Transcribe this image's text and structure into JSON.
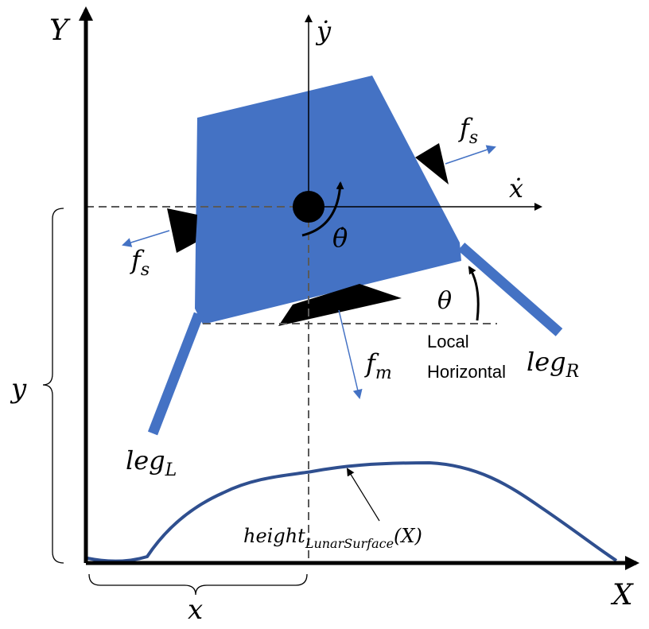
{
  "colors": {
    "lander_body": "#4472C4",
    "terrain": "#2F4F8F",
    "axes": "#000000",
    "dashed": "#595959",
    "force_arrow": "#4472C4"
  },
  "axes": {
    "world_x_label": "X",
    "world_y_label": "Y",
    "body_x_label": "ẋ",
    "body_y_label": "ẏ"
  },
  "labels": {
    "theta_dot": "θ̇",
    "theta": "θ",
    "fs": "f",
    "fs_sub": "s",
    "fm": "f",
    "fm_sub": "m",
    "local_line1": "Local",
    "local_line2": "Horizontal",
    "leg": "leg",
    "leg_right_sub": "R",
    "leg_left_sub": "L",
    "height": "height",
    "height_sub": "LunarSurface",
    "height_arg": "(X)",
    "x_var": "x",
    "y_var": "y"
  }
}
